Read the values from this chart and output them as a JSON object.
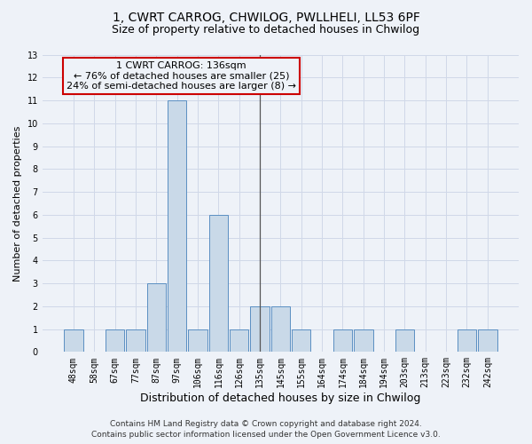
{
  "title1": "1, CWRT CARROG, CHWILOG, PWLLHELI, LL53 6PF",
  "title2": "Size of property relative to detached houses in Chwilog",
  "xlabel": "Distribution of detached houses by size in Chwilog",
  "ylabel": "Number of detached properties",
  "categories": [
    "48sqm",
    "58sqm",
    "67sqm",
    "77sqm",
    "87sqm",
    "97sqm",
    "106sqm",
    "116sqm",
    "126sqm",
    "135sqm",
    "145sqm",
    "155sqm",
    "164sqm",
    "174sqm",
    "184sqm",
    "194sqm",
    "203sqm",
    "213sqm",
    "223sqm",
    "232sqm",
    "242sqm"
  ],
  "values": [
    1,
    0,
    1,
    1,
    3,
    11,
    1,
    6,
    1,
    2,
    2,
    1,
    0,
    1,
    1,
    0,
    1,
    0,
    0,
    1,
    1
  ],
  "bar_color": "#c9d9e8",
  "bar_edge_color": "#5a8fc2",
  "grid_color": "#d0d8e8",
  "background_color": "#eef2f8",
  "ylim": [
    0,
    13
  ],
  "yticks": [
    0,
    1,
    2,
    3,
    4,
    5,
    6,
    7,
    8,
    9,
    10,
    11,
    12,
    13
  ],
  "property_index": 9,
  "annotation_title": "1 CWRT CARROG: 136sqm",
  "annotation_line1": "← 76% of detached houses are smaller (25)",
  "annotation_line2": "24% of semi-detached houses are larger (8) →",
  "footer_line1": "Contains HM Land Registry data © Crown copyright and database right 2024.",
  "footer_line2": "Contains public sector information licensed under the Open Government Licence v3.0.",
  "vline_color": "#555555",
  "annotation_box_edge": "#cc0000",
  "title1_fontsize": 10,
  "title2_fontsize": 9,
  "xlabel_fontsize": 9,
  "ylabel_fontsize": 8,
  "tick_fontsize": 7,
  "annotation_fontsize": 8,
  "footer_fontsize": 6.5
}
